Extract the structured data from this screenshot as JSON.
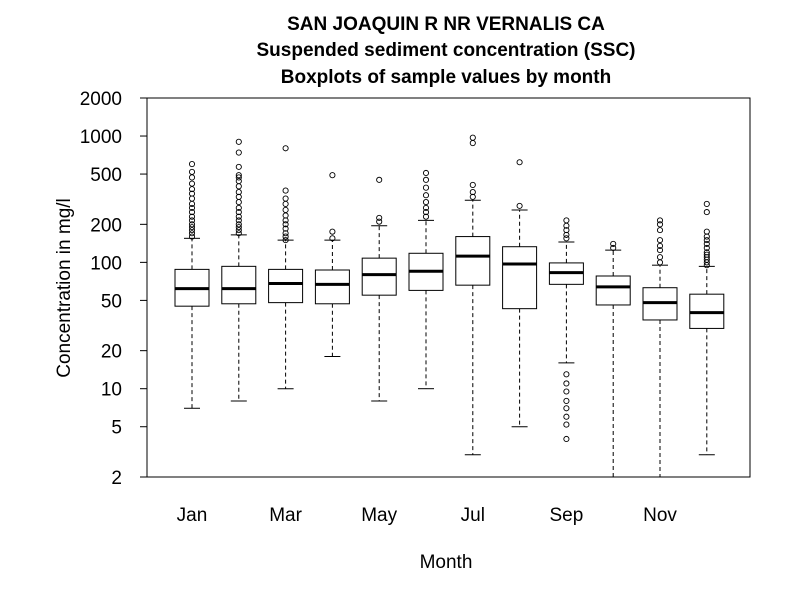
{
  "chart_data": {
    "type": "boxplot",
    "title": "SAN JOAQUIN R NR VERNALIS CA",
    "subtitle": "Suspended sediment concentration (SSC)",
    "subtitle2": "Boxplots of sample values by month",
    "xlabel": "Month",
    "ylabel": "Concentration in mg/l",
    "y_scale": "log",
    "ylim": [
      2,
      2000
    ],
    "y_ticks": [
      2,
      5,
      10,
      20,
      50,
      100,
      200,
      500,
      1000,
      2000
    ],
    "y_tick_labels": [
      "2",
      "5",
      "10",
      "20",
      "50",
      "100",
      "200",
      "500",
      "1000",
      "2000"
    ],
    "x_tick_labels": [
      {
        "month": 1,
        "label": "Jan"
      },
      {
        "month": 3,
        "label": "Mar"
      },
      {
        "month": 5,
        "label": "May"
      },
      {
        "month": 7,
        "label": "Jul"
      },
      {
        "month": 9,
        "label": "Sep"
      },
      {
        "month": 11,
        "label": "Nov"
      }
    ],
    "boxes": [
      {
        "month": 1,
        "whisker_low": 7,
        "q1": 45,
        "median": 62,
        "q3": 88,
        "whisker_high": 155,
        "outliers": [
          160,
          170,
          180,
          190,
          200,
          215,
          230,
          250,
          270,
          290,
          320,
          350,
          380,
          420,
          470,
          520,
          600
        ]
      },
      {
        "month": 2,
        "whisker_low": 8,
        "q1": 47,
        "median": 62,
        "q3": 93,
        "whisker_high": 165,
        "outliers": [
          170,
          180,
          190,
          200,
          215,
          230,
          250,
          270,
          300,
          330,
          360,
          400,
          440,
          470,
          490,
          570,
          740,
          900
        ]
      },
      {
        "month": 3,
        "whisker_low": 10,
        "q1": 48,
        "median": 68,
        "q3": 88,
        "whisker_high": 150,
        "outliers": [
          150,
          160,
          170,
          185,
          200,
          215,
          235,
          260,
          290,
          320,
          370,
          800
        ]
      },
      {
        "month": 4,
        "whisker_low": 18,
        "q1": 47,
        "median": 67,
        "q3": 87,
        "whisker_high": 150,
        "outliers": [
          155,
          175,
          490
        ]
      },
      {
        "month": 5,
        "whisker_low": 8,
        "q1": 55,
        "median": 80,
        "q3": 108,
        "whisker_high": 195,
        "outliers": [
          210,
          225,
          450
        ]
      },
      {
        "month": 6,
        "whisker_low": 10,
        "q1": 60,
        "median": 85,
        "q3": 118,
        "whisker_high": 215,
        "outliers": [
          230,
          250,
          270,
          300,
          340,
          390,
          450,
          510
        ]
      },
      {
        "month": 7,
        "whisker_low": 3,
        "q1": 66,
        "median": 112,
        "q3": 160,
        "whisker_high": 310,
        "outliers": [
          330,
          360,
          410,
          880,
          970
        ]
      },
      {
        "month": 8,
        "whisker_low": 5,
        "q1": 43,
        "median": 97,
        "q3": 133,
        "whisker_high": 260,
        "outliers": [
          280,
          620
        ]
      },
      {
        "month": 9,
        "whisker_low": 16,
        "q1": 67,
        "median": 83,
        "q3": 99,
        "whisker_high": 145,
        "outliers": [
          155,
          165,
          180,
          195,
          215,
          13,
          11,
          9.5,
          8,
          7,
          6,
          5.2,
          4
        ]
      },
      {
        "month": 10,
        "whisker_low": 2,
        "q1": 46,
        "median": 64,
        "q3": 78,
        "whisker_high": 125,
        "outliers": [
          130,
          140
        ]
      },
      {
        "month": 11,
        "whisker_low": 2,
        "q1": 35,
        "median": 48,
        "q3": 63,
        "whisker_high": 95,
        "outliers": [
          100,
          110,
          125,
          135,
          150,
          180,
          200,
          215
        ]
      },
      {
        "month": 12,
        "whisker_low": 3,
        "q1": 30,
        "median": 40,
        "q3": 56,
        "whisker_high": 93,
        "outliers": [
          95,
          100,
          105,
          110,
          115,
          120,
          130,
          140,
          150,
          160,
          175,
          250,
          290
        ]
      }
    ]
  }
}
